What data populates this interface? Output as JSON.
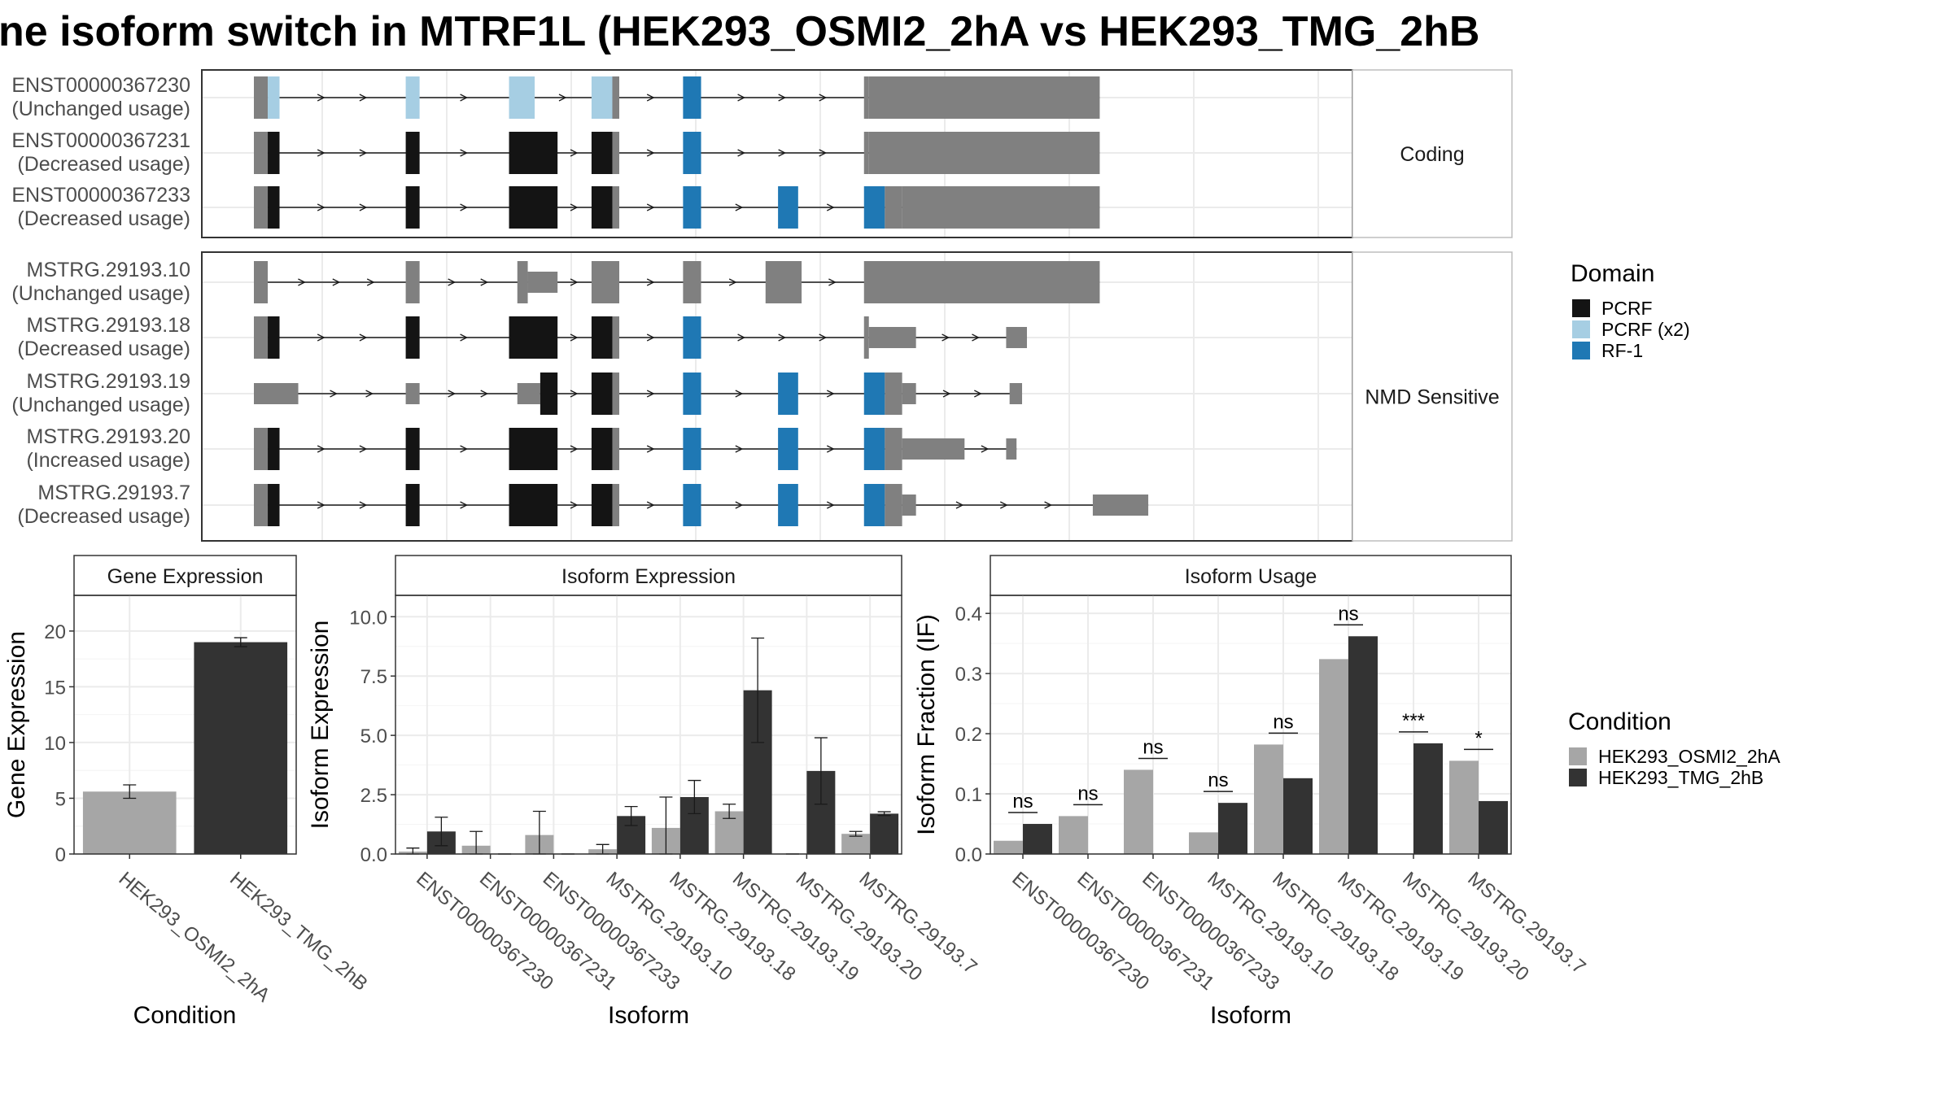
{
  "title": "ne isoform switch in MTRF1L (HEK293_OSMI2_2hA vs HEK293_TMG_2hB",
  "colors": {
    "exon_default": "#808080",
    "PCRF": "#141414",
    "PCRF (x2)": "#a6cee3",
    "RF-1": "#1f78b4",
    "cond1": "#a6a6a6",
    "cond2": "#333333"
  },
  "structure": {
    "facets": [
      "Coding",
      "NMD Sensitive"
    ],
    "transcripts": [
      {
        "id": "ENST00000367230",
        "usage": "(Unchanged usage)",
        "facet": 0,
        "exons": [
          [
            0,
            20,
            "big"
          ],
          [
            20,
            37,
            "PCRF (x2)",
            "big"
          ],
          [
            219,
            239,
            "PCRF (x2)",
            "big"
          ],
          [
            368,
            405,
            "PCRF (x2)",
            "big"
          ],
          [
            487,
            517,
            "PCRF (x2)",
            "big"
          ],
          [
            517,
            527,
            "default",
            "big"
          ],
          [
            619,
            645,
            "RF-1",
            "big"
          ],
          [
            880,
            887,
            "default",
            "big"
          ],
          [
            887,
            1220,
            "default",
            "big"
          ]
        ],
        "arrows_to": [
          1220
        ]
      },
      {
        "id": "ENST00000367231",
        "usage": "(Decreased usage)",
        "facet": 0,
        "exons": [
          [
            0,
            20,
            "big"
          ],
          [
            20,
            37,
            "PCRF",
            "big"
          ],
          [
            219,
            239,
            "PCRF",
            "big"
          ],
          [
            368,
            438,
            "PCRF",
            "big"
          ],
          [
            487,
            517,
            "PCRF",
            "big"
          ],
          [
            517,
            527,
            "default",
            "big"
          ],
          [
            619,
            645,
            "RF-1",
            "big"
          ],
          [
            880,
            887,
            "default",
            "big"
          ],
          [
            887,
            1220,
            "default",
            "big"
          ]
        ]
      },
      {
        "id": "ENST00000367233",
        "usage": "(Decreased usage)",
        "facet": 0,
        "exons": [
          [
            0,
            20,
            "big"
          ],
          [
            20,
            37,
            "PCRF",
            "big"
          ],
          [
            219,
            239,
            "PCRF",
            "big"
          ],
          [
            368,
            438,
            "PCRF",
            "big"
          ],
          [
            487,
            517,
            "PCRF",
            "big"
          ],
          [
            517,
            527,
            "default",
            "big"
          ],
          [
            619,
            645,
            "RF-1",
            "big"
          ],
          [
            756,
            785,
            "RF-1",
            "big"
          ],
          [
            880,
            910,
            "RF-1",
            "big"
          ],
          [
            910,
            935,
            "default",
            "big"
          ],
          [
            935,
            1220,
            "default",
            "big"
          ]
        ]
      },
      {
        "id": "MSTRG.29193.10",
        "usage": "(Unchanged usage)",
        "facet": 1,
        "exons": [
          [
            0,
            20,
            "big"
          ],
          [
            219,
            239,
            "default",
            "big"
          ],
          [
            380,
            395,
            "default",
            "big"
          ],
          [
            395,
            438,
            "default",
            "small"
          ],
          [
            487,
            527,
            "default",
            "big"
          ],
          [
            619,
            645,
            "default",
            "big"
          ],
          [
            738,
            790,
            "default",
            "big"
          ],
          [
            880,
            1220,
            "default",
            "big"
          ]
        ]
      },
      {
        "id": "MSTRG.29193.18",
        "usage": "(Decreased usage)",
        "facet": 1,
        "exons": [
          [
            0,
            20,
            "big"
          ],
          [
            20,
            37,
            "PCRF",
            "big"
          ],
          [
            219,
            239,
            "PCRF",
            "big"
          ],
          [
            368,
            438,
            "PCRF",
            "big"
          ],
          [
            487,
            517,
            "PCRF",
            "big"
          ],
          [
            517,
            527,
            "default",
            "big"
          ],
          [
            619,
            645,
            "RF-1",
            "big"
          ],
          [
            880,
            887,
            "default",
            "big"
          ],
          [
            887,
            955,
            "default",
            "small"
          ],
          [
            1085,
            1115,
            "default",
            "small"
          ]
        ]
      },
      {
        "id": "MSTRG.29193.19",
        "usage": "(Unchanged usage)",
        "facet": 1,
        "exons": [
          [
            0,
            64,
            "small"
          ],
          [
            219,
            239,
            "default",
            "small"
          ],
          [
            380,
            413,
            "default",
            "small"
          ],
          [
            413,
            438,
            "PCRF",
            "big"
          ],
          [
            487,
            517,
            "PCRF",
            "big"
          ],
          [
            517,
            527,
            "default",
            "big"
          ],
          [
            619,
            645,
            "RF-1",
            "big"
          ],
          [
            756,
            785,
            "RF-1",
            "big"
          ],
          [
            880,
            910,
            "RF-1",
            "big"
          ],
          [
            910,
            935,
            "default",
            "big"
          ],
          [
            935,
            955,
            "default",
            "small"
          ],
          [
            1090,
            1108,
            "default",
            "small"
          ]
        ]
      },
      {
        "id": "MSTRG.29193.20",
        "usage": "(Increased usage)",
        "facet": 1,
        "exons": [
          [
            0,
            20,
            "big"
          ],
          [
            20,
            37,
            "PCRF",
            "big"
          ],
          [
            219,
            239,
            "PCRF",
            "big"
          ],
          [
            368,
            438,
            "PCRF",
            "big"
          ],
          [
            487,
            517,
            "PCRF",
            "big"
          ],
          [
            517,
            527,
            "default",
            "big"
          ],
          [
            619,
            645,
            "RF-1",
            "big"
          ],
          [
            756,
            785,
            "RF-1",
            "big"
          ],
          [
            880,
            910,
            "RF-1",
            "big"
          ],
          [
            910,
            935,
            "default",
            "big"
          ],
          [
            935,
            1025,
            "default",
            "small"
          ],
          [
            1085,
            1100,
            "default",
            "small"
          ]
        ]
      },
      {
        "id": "MSTRG.29193.7",
        "usage": "(Decreased usage)",
        "facet": 1,
        "exons": [
          [
            0,
            20,
            "big"
          ],
          [
            20,
            37,
            "PCRF",
            "big"
          ],
          [
            219,
            239,
            "PCRF",
            "big"
          ],
          [
            368,
            438,
            "PCRF",
            "big"
          ],
          [
            487,
            517,
            "PCRF",
            "big"
          ],
          [
            517,
            527,
            "default",
            "big"
          ],
          [
            619,
            645,
            "RF-1",
            "big"
          ],
          [
            756,
            785,
            "RF-1",
            "big"
          ],
          [
            880,
            910,
            "RF-1",
            "big"
          ],
          [
            910,
            935,
            "default",
            "big"
          ],
          [
            935,
            955,
            "default",
            "small"
          ],
          [
            1210,
            1290,
            "default",
            "small"
          ]
        ]
      }
    ]
  },
  "legend_domain": {
    "title": "Domain",
    "items": [
      {
        "label": "PCRF",
        "color": "#141414"
      },
      {
        "label": "PCRF (x2)",
        "color": "#a6cee3"
      },
      {
        "label": "RF-1",
        "color": "#1f78b4"
      }
    ]
  },
  "legend_condition": {
    "title": "Condition",
    "items": [
      {
        "label": "HEK293_OSMI2_2hA",
        "color": "#a6a6a6"
      },
      {
        "label": "HEK293_TMG_2hB",
        "color": "#333333"
      }
    ]
  },
  "chart_data": [
    {
      "type": "bar",
      "title": "Gene Expression",
      "xlabel": "Condition",
      "ylabel": "Gene Expression",
      "ylim": [
        0,
        23.2
      ],
      "yticks": [
        0,
        5,
        10,
        15,
        20
      ],
      "categories": [
        "HEK293_OSMI2_2hA",
        "HEK293_TMG_2hB"
      ],
      "values": [
        5.6,
        19.0
      ],
      "errors": [
        0.6,
        0.4
      ]
    },
    {
      "type": "bar",
      "title": "Isoform Expression",
      "xlabel": "Isoform",
      "ylabel": "Isoform Expression",
      "ylim": [
        0,
        10.9
      ],
      "yticks": [
        0.0,
        2.5,
        5.0,
        7.5,
        10.0
      ],
      "categories": [
        "ENST00000367230",
        "ENST00000367231",
        "ENST00000367233",
        "MSTRG.29193.10",
        "MSTRG.29193.18",
        "MSTRG.29193.19",
        "MSTRG.29193.20",
        "MSTRG.29193.7"
      ],
      "series": [
        {
          "name": "HEK293_OSMI2_2hA",
          "values": [
            0.1,
            0.35,
            0.8,
            0.2,
            1.1,
            1.8,
            0.0,
            0.85
          ],
          "errors": [
            0.15,
            0.6,
            1.0,
            0.2,
            1.3,
            0.3,
            0.0,
            0.1
          ]
        },
        {
          "name": "HEK293_TMG_2hB",
          "values": [
            0.95,
            0.0,
            0.0,
            1.6,
            2.4,
            6.9,
            3.5,
            1.7
          ],
          "errors": [
            0.6,
            0.0,
            0.0,
            0.4,
            0.7,
            2.2,
            1.4,
            0.08
          ]
        }
      ]
    },
    {
      "type": "bar",
      "title": "Isoform Usage",
      "xlabel": "Isoform",
      "ylabel": "Isoform Fraction (IF)",
      "ylim": [
        0,
        0.43
      ],
      "yticks": [
        0.0,
        0.1,
        0.2,
        0.3,
        0.4
      ],
      "categories": [
        "ENST00000367230",
        "ENST00000367231",
        "ENST00000367233",
        "MSTRG.29193.10",
        "MSTRG.29193.18",
        "MSTRG.29193.19",
        "MSTRG.29193.20",
        "MSTRG.29193.7"
      ],
      "series": [
        {
          "name": "HEK293_OSMI2_2hA",
          "values": [
            0.022,
            0.063,
            0.14,
            0.036,
            0.182,
            0.324,
            0.0,
            0.155
          ]
        },
        {
          "name": "HEK293_TMG_2hB",
          "values": [
            0.05,
            0.0,
            0.0,
            0.085,
            0.126,
            0.362,
            0.184,
            0.088
          ]
        }
      ],
      "significance": [
        "ns",
        "ns",
        "ns",
        "ns",
        "ns",
        "ns",
        "***",
        "*"
      ]
    }
  ]
}
